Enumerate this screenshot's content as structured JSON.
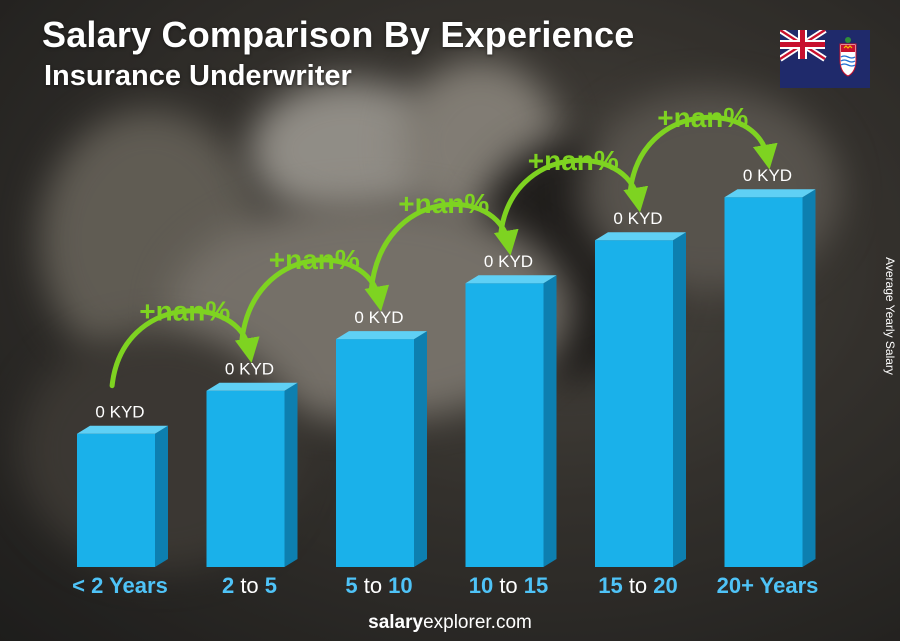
{
  "header": {
    "title": "Salary Comparison By Experience",
    "subtitle": "Insurance Underwriter"
  },
  "footer": {
    "brand_bold": "salary",
    "brand_rest": "explorer.com"
  },
  "flag": {
    "icon": "cayman-islands-flag-icon"
  },
  "colors": {
    "bar_front": "#1ab1ea",
    "bar_side": "#0d7fb0",
    "bar_top": "#5fd0f5",
    "tick_accent": "#4fc3f7",
    "change_green": "#7ed321",
    "text": "#ffffff"
  },
  "chart_data": {
    "type": "bar",
    "categories": [
      "< 2 Years",
      "2 to 5",
      "5 to 10",
      "10 to 15",
      "15 to 20",
      "20+ Years"
    ],
    "category_parts": [
      {
        "bold": "< 2 Years",
        "mid": "",
        "tail": ""
      },
      {
        "bold": "2",
        "mid": " to ",
        "tail": "5"
      },
      {
        "bold": "5",
        "mid": " to ",
        "tail": "10"
      },
      {
        "bold": "10",
        "mid": " to ",
        "tail": "15"
      },
      {
        "bold": "15",
        "mid": " to ",
        "tail": "20"
      },
      {
        "bold": "20+ Years",
        "mid": "",
        "tail": ""
      }
    ],
    "values": [
      0,
      0,
      0,
      0,
      0,
      0
    ],
    "value_labels": [
      "0 KYD",
      "0 KYD",
      "0 KYD",
      "0 KYD",
      "0 KYD",
      "0 KYD"
    ],
    "changes": [
      "+nan%",
      "+nan%",
      "+nan%",
      "+nan%",
      "+nan%"
    ],
    "visual_levels": [
      0.31,
      0.41,
      0.53,
      0.66,
      0.76,
      0.86
    ],
    "ylabel": "Average Yearly Salary",
    "grid": false,
    "legend": "none"
  }
}
